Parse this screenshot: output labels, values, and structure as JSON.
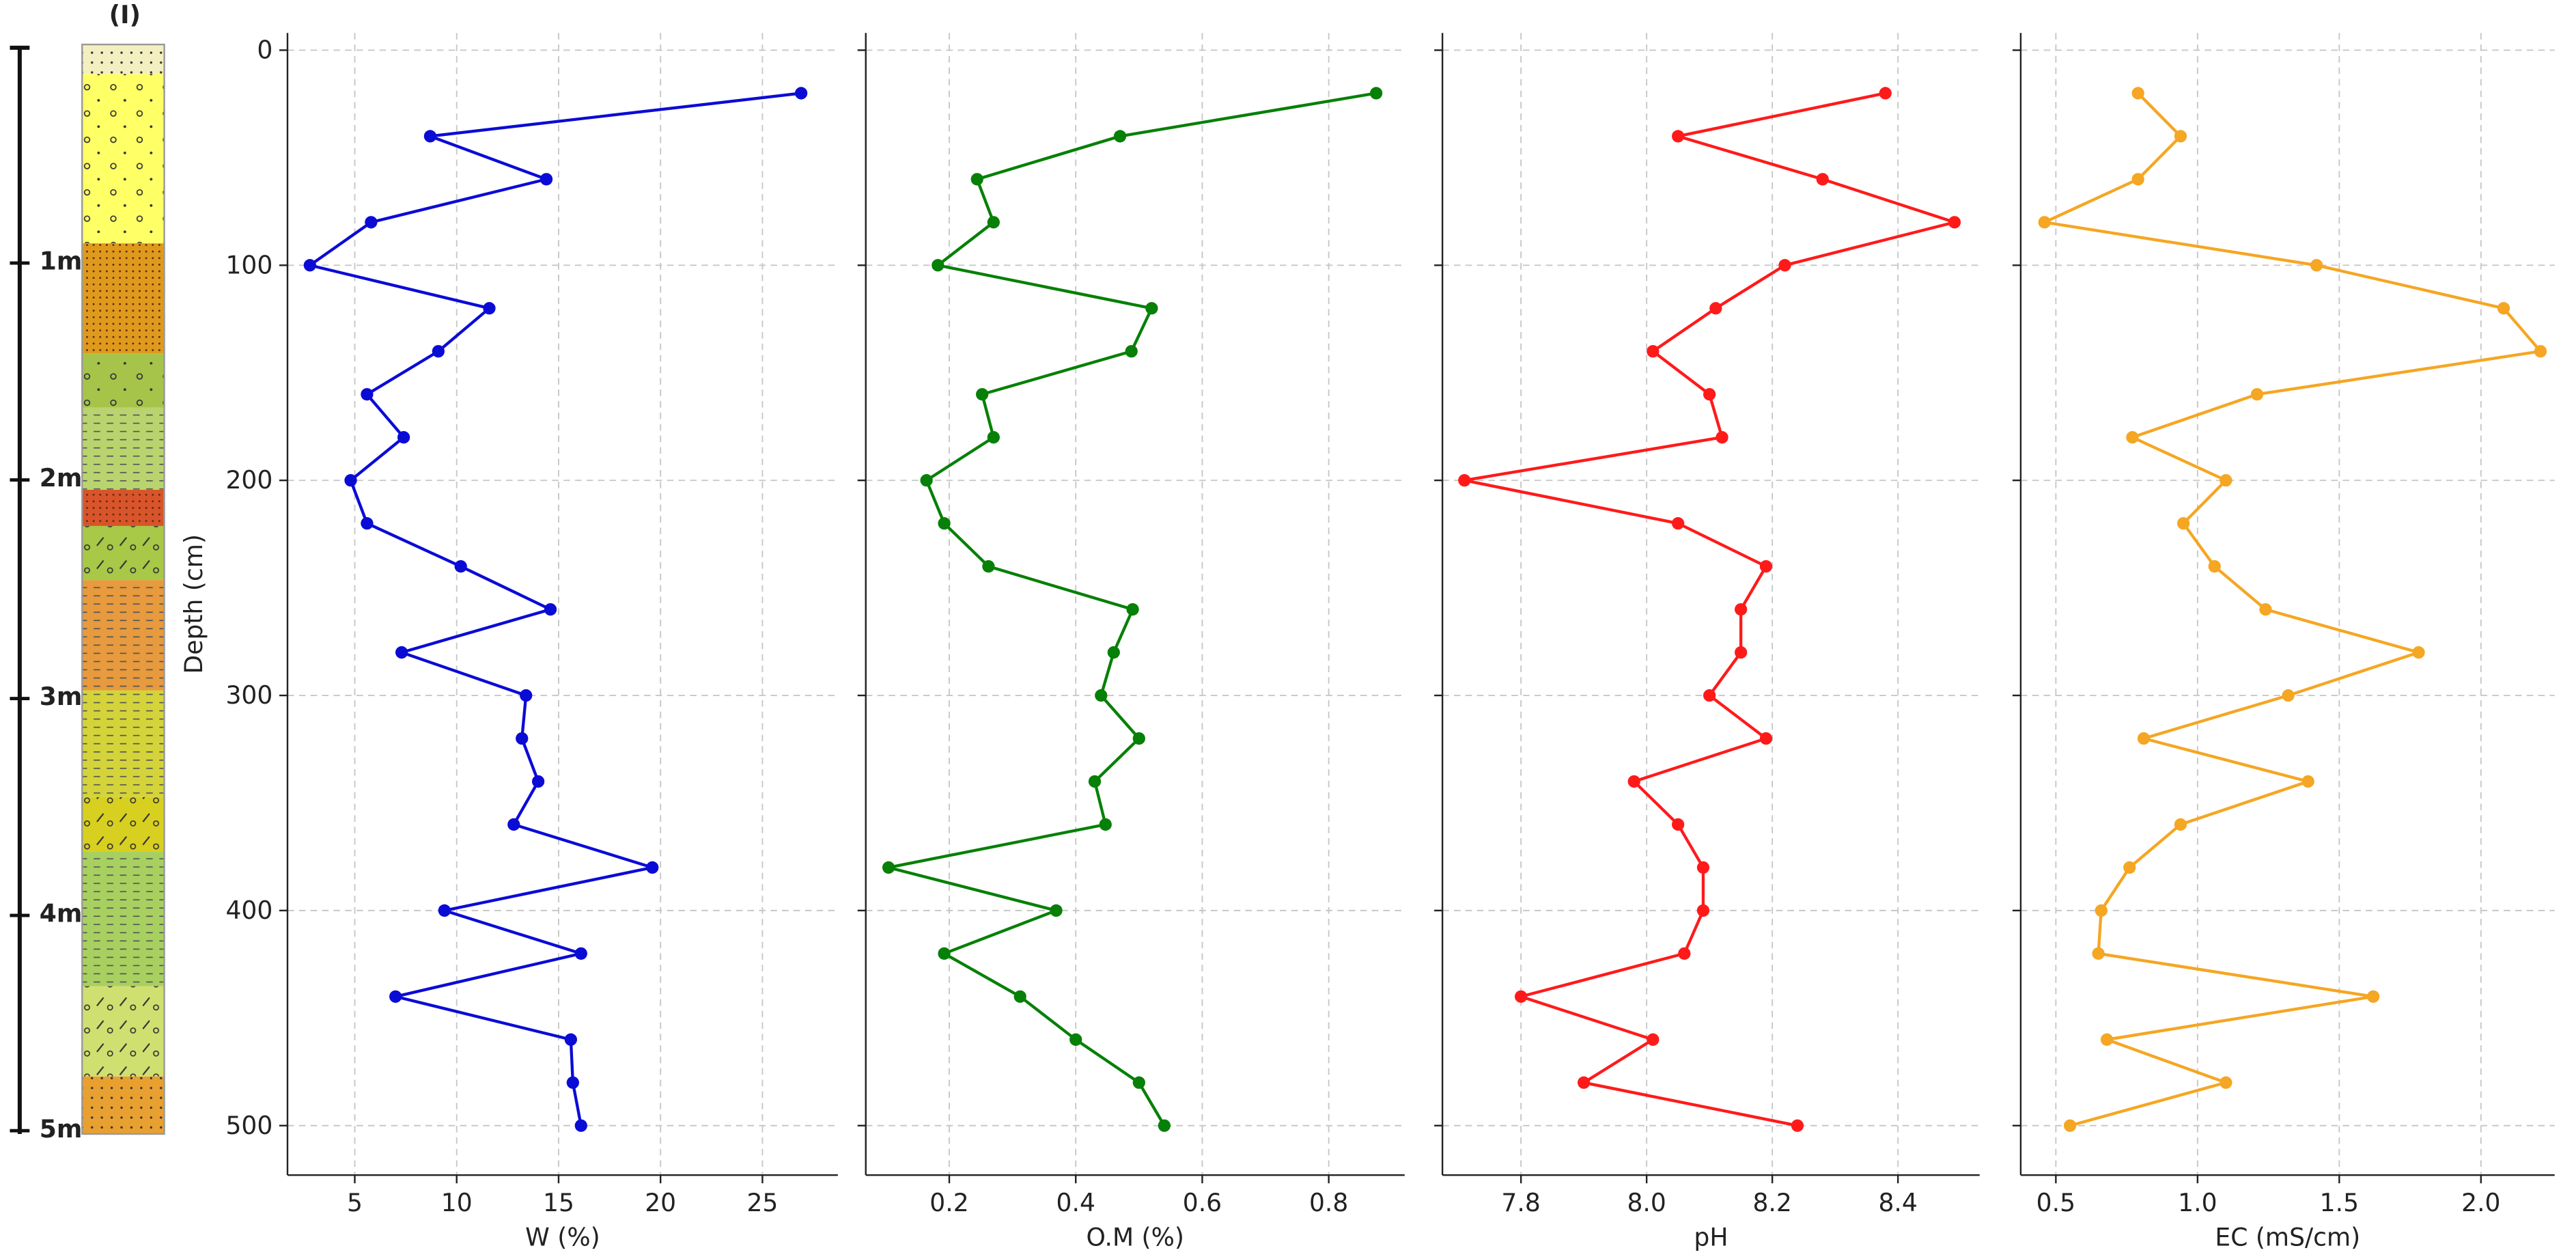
{
  "soil_column": {
    "title": "(I)",
    "depth_labels": [
      "1m",
      "2m",
      "3m",
      "4m",
      "5m"
    ]
  },
  "chart_data": [
    {
      "type": "line",
      "xlabel": "W (%)",
      "ylabel": "Depth (cm)",
      "y": [
        20,
        40,
        60,
        80,
        100,
        120,
        140,
        160,
        180,
        200,
        220,
        240,
        260,
        280,
        300,
        320,
        340,
        360,
        380,
        400,
        420,
        440,
        460,
        480,
        500
      ],
      "series": [
        {
          "color": "#0b0bd6",
          "values": [
            26.9,
            8.7,
            14.4,
            5.8,
            2.8,
            11.6,
            9.1,
            5.6,
            7.4,
            4.8,
            5.6,
            10.2,
            14.6,
            7.3,
            13.4,
            13.2,
            14.0,
            12.8,
            19.6,
            9.4,
            16.1,
            7.0,
            15.6,
            15.7,
            16.1
          ]
        }
      ],
      "xlim": [
        1.7,
        28.7
      ],
      "xticks": [
        5,
        10,
        15,
        20,
        25
      ],
      "ylim": [
        -8,
        523
      ],
      "y_inverted": true,
      "yticks": [
        0,
        100,
        200,
        300,
        400,
        500
      ],
      "grid": true
    },
    {
      "type": "line",
      "xlabel": "O.M (%)",
      "y": [
        20,
        40,
        60,
        80,
        100,
        120,
        140,
        160,
        180,
        200,
        220,
        240,
        260,
        280,
        300,
        320,
        340,
        360,
        380,
        400,
        420,
        440,
        460,
        480,
        500
      ],
      "series": [
        {
          "color": "#078007",
          "values": [
            0.875,
            0.47,
            0.244,
            0.27,
            0.182,
            0.52,
            0.488,
            0.252,
            0.27,
            0.164,
            0.192,
            0.262,
            0.49,
            0.46,
            0.44,
            0.5,
            0.43,
            0.447,
            0.104,
            0.369,
            0.192,
            0.312,
            0.4,
            0.5,
            0.54
          ]
        }
      ],
      "xlim": [
        0.068,
        0.92
      ],
      "xticks": [
        0.2,
        0.4,
        0.6,
        0.8
      ],
      "ylim": [
        -8,
        523
      ],
      "y_inverted": true,
      "yticks": [
        0,
        100,
        200,
        300,
        400,
        500
      ],
      "grid": true
    },
    {
      "type": "line",
      "xlabel": "pH",
      "y": [
        20,
        40,
        60,
        80,
        100,
        120,
        140,
        160,
        180,
        200,
        220,
        240,
        260,
        280,
        300,
        320,
        340,
        360,
        380,
        400,
        420,
        440,
        460,
        480,
        500
      ],
      "series": [
        {
          "color": "#ff1a1a",
          "values": [
            8.38,
            8.05,
            8.28,
            8.49,
            8.22,
            8.11,
            8.01,
            8.1,
            8.12,
            7.71,
            8.05,
            8.19,
            8.15,
            8.15,
            8.1,
            8.19,
            7.98,
            8.05,
            8.09,
            8.09,
            8.06,
            7.8,
            8.01,
            7.9,
            8.24
          ]
        }
      ],
      "xlim": [
        7.675,
        8.53
      ],
      "xticks": [
        7.8,
        {
          "value": 8,
          "label": "8.0"
        },
        8.2,
        8.4
      ],
      "ylim": [
        -8,
        523
      ],
      "y_inverted": true,
      "yticks": [
        0,
        100,
        200,
        300,
        400,
        500
      ],
      "grid": true
    },
    {
      "type": "line",
      "xlabel": "EC (mS/cm)",
      "y": [
        20,
        40,
        60,
        80,
        100,
        120,
        140,
        160,
        180,
        200,
        220,
        240,
        260,
        280,
        300,
        320,
        340,
        360,
        380,
        400,
        420,
        440,
        460,
        480,
        500
      ],
      "series": [
        {
          "color": "#f5a623",
          "values": [
            0.79,
            0.94,
            0.79,
            0.46,
            1.42,
            2.08,
            2.21,
            1.21,
            0.77,
            1.1,
            0.95,
            1.06,
            1.24,
            1.78,
            1.32,
            0.81,
            1.39,
            0.94,
            0.76,
            0.66,
            0.65,
            1.62,
            0.68,
            1.1,
            0.55
          ]
        }
      ],
      "xlim": [
        0.376,
        2.26
      ],
      "xticks": [
        0.5,
        {
          "value": 1,
          "label": "1.0"
        },
        1.5,
        {
          "value": 2,
          "label": "2.0"
        }
      ],
      "ylim": [
        -8,
        523
      ],
      "y_inverted": true,
      "yticks": [
        0,
        100,
        200,
        300,
        400,
        500
      ],
      "grid": true
    }
  ]
}
